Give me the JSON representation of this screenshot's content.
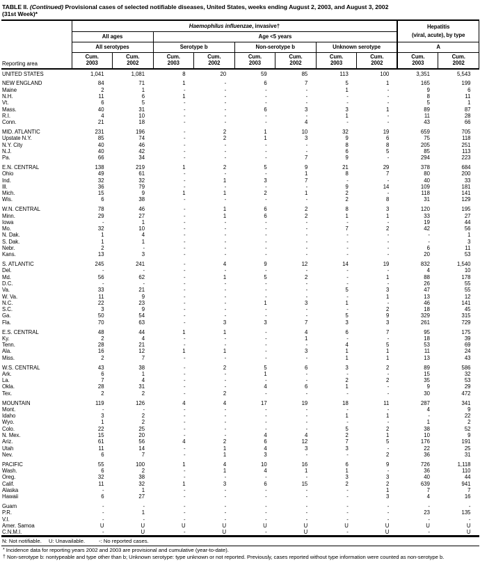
{
  "colors": {
    "ink": "#000000",
    "background": "#ffffff"
  },
  "title": {
    "part1": "TABLE II. ",
    "continued": "(Continued)",
    "part2": " Provisional cases of selected notifiable diseases, United States, weeks ending August 2, 2003, and August 3, 2002",
    "line2": "(31st Week)*"
  },
  "header": {
    "reporting_area": "Reporting area",
    "disease_italic": "Haemophilus influenzae",
    "disease_rest": ", invasive†",
    "hepatitis_line1": "Hepatitis",
    "hepatitis_line2": "(viral, acute), by type",
    "all_ages": "All ages",
    "age_under5": "Age <5 years",
    "all_serotypes": "All serotypes",
    "serotype_b": "Serotype b",
    "non_serotype_b": "Non-serotype b",
    "unknown_serotype": "Unknown serotype",
    "type_a": "A",
    "cum_label": "Cum.",
    "years": [
      "2003",
      "2002",
      "2003",
      "2002",
      "2003",
      "2002",
      "2003",
      "2002",
      "2003",
      "2002"
    ]
  },
  "rows": [
    {
      "area": "UNITED STATES",
      "section_start": false,
      "values": [
        "1,041",
        "1,081",
        "8",
        "20",
        "59",
        "85",
        "113",
        "100",
        "3,351",
        "5,543"
      ]
    },
    {
      "area": "NEW ENGLAND",
      "section_start": true,
      "values": [
        "84",
        "71",
        "1",
        "-",
        "6",
        "7",
        "5",
        "1",
        "165",
        "199"
      ]
    },
    {
      "area": "Maine",
      "section_start": false,
      "values": [
        "2",
        "1",
        "-",
        "-",
        "-",
        "-",
        "1",
        "-",
        "9",
        "6"
      ]
    },
    {
      "area": "N.H.",
      "section_start": false,
      "values": [
        "11",
        "6",
        "1",
        "-",
        "-",
        "-",
        "-",
        "-",
        "8",
        "11"
      ]
    },
    {
      "area": "Vt.",
      "section_start": false,
      "values": [
        "6",
        "5",
        "-",
        "-",
        "-",
        "-",
        "-",
        "-",
        "5",
        "1"
      ]
    },
    {
      "area": "Mass.",
      "section_start": false,
      "values": [
        "40",
        "31",
        "-",
        "-",
        "6",
        "3",
        "3",
        "1",
        "89",
        "87"
      ]
    },
    {
      "area": "R.I.",
      "section_start": false,
      "values": [
        "4",
        "10",
        "-",
        "-",
        "-",
        "-",
        "1",
        "-",
        "11",
        "28"
      ]
    },
    {
      "area": "Conn.",
      "section_start": false,
      "values": [
        "21",
        "18",
        "-",
        "-",
        "-",
        "4",
        "-",
        "-",
        "43",
        "66"
      ]
    },
    {
      "area": "MID. ATLANTIC",
      "section_start": true,
      "values": [
        "231",
        "196",
        "-",
        "2",
        "1",
        "10",
        "32",
        "19",
        "659",
        "705"
      ]
    },
    {
      "area": "Upstate N.Y.",
      "section_start": false,
      "values": [
        "85",
        "74",
        "-",
        "2",
        "1",
        "3",
        "9",
        "6",
        "75",
        "118"
      ]
    },
    {
      "area": "N.Y. City",
      "section_start": false,
      "values": [
        "40",
        "46",
        "-",
        "-",
        "-",
        "-",
        "8",
        "8",
        "205",
        "251"
      ]
    },
    {
      "area": "N.J.",
      "section_start": false,
      "values": [
        "40",
        "42",
        "-",
        "-",
        "-",
        "-",
        "6",
        "5",
        "85",
        "113"
      ]
    },
    {
      "area": "Pa.",
      "section_start": false,
      "values": [
        "66",
        "34",
        "-",
        "-",
        "-",
        "7",
        "9",
        "-",
        "294",
        "223"
      ]
    },
    {
      "area": "E.N. CENTRAL",
      "section_start": true,
      "values": [
        "138",
        "219",
        "1",
        "2",
        "5",
        "9",
        "21",
        "29",
        "378",
        "684"
      ]
    },
    {
      "area": "Ohio",
      "section_start": false,
      "values": [
        "49",
        "61",
        "-",
        "-",
        "-",
        "1",
        "8",
        "7",
        "80",
        "200"
      ]
    },
    {
      "area": "Ind.",
      "section_start": false,
      "values": [
        "32",
        "32",
        "-",
        "1",
        "3",
        "7",
        "-",
        "-",
        "40",
        "33"
      ]
    },
    {
      "area": "Ill.",
      "section_start": false,
      "values": [
        "36",
        "79",
        "-",
        "-",
        "-",
        "-",
        "9",
        "14",
        "109",
        "181"
      ]
    },
    {
      "area": "Mich.",
      "section_start": false,
      "values": [
        "15",
        "9",
        "1",
        "1",
        "2",
        "1",
        "2",
        "-",
        "118",
        "141"
      ]
    },
    {
      "area": "Wis.",
      "section_start": false,
      "values": [
        "6",
        "38",
        "-",
        "-",
        "-",
        "-",
        "2",
        "8",
        "31",
        "129"
      ]
    },
    {
      "area": "W.N. CENTRAL",
      "section_start": true,
      "values": [
        "78",
        "46",
        "-",
        "1",
        "6",
        "2",
        "8",
        "3",
        "120",
        "195"
      ]
    },
    {
      "area": "Minn.",
      "section_start": false,
      "values": [
        "29",
        "27",
        "-",
        "1",
        "6",
        "2",
        "1",
        "1",
        "33",
        "27"
      ]
    },
    {
      "area": "Iowa",
      "section_start": false,
      "values": [
        "-",
        "1",
        "-",
        "-",
        "-",
        "-",
        "-",
        "-",
        "19",
        "44"
      ]
    },
    {
      "area": "Mo.",
      "section_start": false,
      "values": [
        "32",
        "10",
        "-",
        "-",
        "-",
        "-",
        "7",
        "2",
        "42",
        "56"
      ]
    },
    {
      "area": "N. Dak.",
      "section_start": false,
      "values": [
        "1",
        "4",
        "-",
        "-",
        "-",
        "-",
        "-",
        "-",
        "-",
        "1"
      ]
    },
    {
      "area": "S. Dak.",
      "section_start": false,
      "values": [
        "1",
        "1",
        "-",
        "-",
        "-",
        "-",
        "-",
        "-",
        "-",
        "3"
      ]
    },
    {
      "area": "Nebr.",
      "section_start": false,
      "values": [
        "2",
        "-",
        "-",
        "-",
        "-",
        "-",
        "-",
        "-",
        "6",
        "11"
      ]
    },
    {
      "area": "Kans.",
      "section_start": false,
      "values": [
        "13",
        "3",
        "-",
        "-",
        "-",
        "-",
        "-",
        "-",
        "20",
        "53"
      ]
    },
    {
      "area": "S. ATLANTIC",
      "section_start": true,
      "values": [
        "245",
        "241",
        "-",
        "4",
        "9",
        "12",
        "14",
        "19",
        "832",
        "1,540"
      ]
    },
    {
      "area": "Del.",
      "section_start": false,
      "values": [
        "-",
        "-",
        "-",
        "-",
        "-",
        "-",
        "-",
        "-",
        "4",
        "10"
      ]
    },
    {
      "area": "Md.",
      "section_start": false,
      "values": [
        "56",
        "62",
        "-",
        "1",
        "5",
        "2",
        "-",
        "1",
        "88",
        "178"
      ]
    },
    {
      "area": "D.C.",
      "section_start": false,
      "values": [
        "-",
        "-",
        "-",
        "-",
        "-",
        "-",
        "-",
        "-",
        "26",
        "55"
      ]
    },
    {
      "area": "Va.",
      "section_start": false,
      "values": [
        "33",
        "21",
        "-",
        "-",
        "-",
        "-",
        "5",
        "3",
        "47",
        "55"
      ]
    },
    {
      "area": "W. Va.",
      "section_start": false,
      "values": [
        "11",
        "9",
        "-",
        "-",
        "-",
        "-",
        "-",
        "1",
        "13",
        "12"
      ]
    },
    {
      "area": "N.C.",
      "section_start": false,
      "values": [
        "22",
        "23",
        "-",
        "-",
        "1",
        "3",
        "1",
        "-",
        "46",
        "141"
      ]
    },
    {
      "area": "S.C.",
      "section_start": false,
      "values": [
        "3",
        "9",
        "-",
        "-",
        "-",
        "-",
        "-",
        "2",
        "18",
        "45"
      ]
    },
    {
      "area": "Ga.",
      "section_start": false,
      "values": [
        "50",
        "54",
        "-",
        "-",
        "-",
        "-",
        "5",
        "9",
        "329",
        "315"
      ]
    },
    {
      "area": "Fla.",
      "section_start": false,
      "values": [
        "70",
        "63",
        "-",
        "3",
        "3",
        "7",
        "3",
        "3",
        "261",
        "729"
      ]
    },
    {
      "area": "E.S. CENTRAL",
      "section_start": true,
      "values": [
        "48",
        "44",
        "1",
        "1",
        "-",
        "4",
        "6",
        "7",
        "95",
        "175"
      ]
    },
    {
      "area": "Ky.",
      "section_start": false,
      "values": [
        "2",
        "4",
        "-",
        "-",
        "-",
        "1",
        "-",
        "-",
        "18",
        "39"
      ]
    },
    {
      "area": "Tenn.",
      "section_start": false,
      "values": [
        "28",
        "21",
        "-",
        "-",
        "-",
        "-",
        "4",
        "5",
        "53",
        "69"
      ]
    },
    {
      "area": "Ala.",
      "section_start": false,
      "values": [
        "16",
        "12",
        "1",
        "1",
        "-",
        "3",
        "1",
        "1",
        "11",
        "24"
      ]
    },
    {
      "area": "Miss.",
      "section_start": false,
      "values": [
        "2",
        "7",
        "-",
        "-",
        "-",
        "-",
        "1",
        "1",
        "13",
        "43"
      ]
    },
    {
      "area": "W.S. CENTRAL",
      "section_start": true,
      "values": [
        "43",
        "38",
        "-",
        "2",
        "5",
        "6",
        "3",
        "2",
        "89",
        "586"
      ]
    },
    {
      "area": "Ark.",
      "section_start": false,
      "values": [
        "6",
        "1",
        "-",
        "-",
        "1",
        "-",
        "-",
        "-",
        "15",
        "32"
      ]
    },
    {
      "area": "La.",
      "section_start": false,
      "values": [
        "7",
        "4",
        "-",
        "-",
        "-",
        "-",
        "2",
        "2",
        "35",
        "53"
      ]
    },
    {
      "area": "Okla.",
      "section_start": false,
      "values": [
        "28",
        "31",
        "-",
        "-",
        "4",
        "6",
        "1",
        "-",
        "9",
        "29"
      ]
    },
    {
      "area": "Tex.",
      "section_start": false,
      "values": [
        "2",
        "2",
        "-",
        "2",
        "-",
        "-",
        "-",
        "-",
        "30",
        "472"
      ]
    },
    {
      "area": "MOUNTAIN",
      "section_start": true,
      "values": [
        "119",
        "126",
        "4",
        "4",
        "17",
        "19",
        "18",
        "11",
        "287",
        "341"
      ]
    },
    {
      "area": "Mont.",
      "section_start": false,
      "values": [
        "-",
        "-",
        "-",
        "-",
        "-",
        "-",
        "-",
        "-",
        "4",
        "9"
      ]
    },
    {
      "area": "Idaho",
      "section_start": false,
      "values": [
        "3",
        "2",
        "-",
        "-",
        "-",
        "-",
        "1",
        "1",
        "-",
        "22"
      ]
    },
    {
      "area": "Wyo.",
      "section_start": false,
      "values": [
        "1",
        "2",
        "-",
        "-",
        "-",
        "-",
        "-",
        "-",
        "1",
        "2"
      ]
    },
    {
      "area": "Colo.",
      "section_start": false,
      "values": [
        "22",
        "25",
        "-",
        "-",
        "-",
        "-",
        "5",
        "2",
        "38",
        "52"
      ]
    },
    {
      "area": "N. Mex.",
      "section_start": false,
      "values": [
        "15",
        "20",
        "-",
        "-",
        "4",
        "4",
        "2",
        "1",
        "10",
        "9"
      ]
    },
    {
      "area": "Ariz.",
      "section_start": false,
      "values": [
        "61",
        "56",
        "4",
        "2",
        "6",
        "12",
        "7",
        "5",
        "176",
        "191"
      ]
    },
    {
      "area": "Utah",
      "section_start": false,
      "values": [
        "11",
        "14",
        "-",
        "1",
        "4",
        "3",
        "3",
        "-",
        "22",
        "25"
      ]
    },
    {
      "area": "Nev.",
      "section_start": false,
      "values": [
        "6",
        "7",
        "-",
        "1",
        "3",
        "-",
        "-",
        "2",
        "36",
        "31"
      ]
    },
    {
      "area": "PACIFIC",
      "section_start": true,
      "values": [
        "55",
        "100",
        "1",
        "4",
        "10",
        "16",
        "6",
        "9",
        "726",
        "1,118"
      ]
    },
    {
      "area": "Wash.",
      "section_start": false,
      "values": [
        "6",
        "2",
        "-",
        "1",
        "4",
        "1",
        "1",
        "-",
        "36",
        "110"
      ]
    },
    {
      "area": "Oreg.",
      "section_start": false,
      "values": [
        "32",
        "38",
        "-",
        "-",
        "-",
        "-",
        "3",
        "3",
        "40",
        "44"
      ]
    },
    {
      "area": "Calif.",
      "section_start": false,
      "values": [
        "11",
        "32",
        "1",
        "3",
        "6",
        "15",
        "2",
        "2",
        "639",
        "941"
      ]
    },
    {
      "area": "Alaska",
      "section_start": false,
      "values": [
        "-",
        "1",
        "-",
        "-",
        "-",
        "-",
        "-",
        "1",
        "7",
        "7"
      ]
    },
    {
      "area": "Hawaii",
      "section_start": false,
      "values": [
        "6",
        "27",
        "-",
        "-",
        "-",
        "-",
        "-",
        "3",
        "4",
        "16"
      ]
    },
    {
      "area": "Guam",
      "section_start": true,
      "values": [
        "-",
        "-",
        "-",
        "-",
        "-",
        "-",
        "-",
        "-",
        "-",
        "-"
      ]
    },
    {
      "area": "P.R.",
      "section_start": false,
      "values": [
        "-",
        "1",
        "-",
        "-",
        "-",
        "-",
        "-",
        "-",
        "23",
        "135"
      ]
    },
    {
      "area": "V.I.",
      "section_start": false,
      "values": [
        "-",
        "-",
        "-",
        "-",
        "-",
        "-",
        "-",
        "-",
        "-",
        "-"
      ]
    },
    {
      "area": "Amer. Samoa",
      "section_start": false,
      "values": [
        "U",
        "U",
        "U",
        "U",
        "U",
        "U",
        "U",
        "U",
        "U",
        "U"
      ]
    },
    {
      "area": "C.N.M.I.",
      "section_start": false,
      "values": [
        "-",
        "U",
        "-",
        "U",
        "-",
        "U",
        "-",
        "U",
        "-",
        "U"
      ]
    }
  ],
  "footer": {
    "legend": [
      "N: Not notifiable.",
      "U: Unavailable.",
      "-: No reported cases."
    ],
    "notes": [
      {
        "marker": "*",
        "text": "Incidence data for reporting years 2002 and 2003 are provisional and cumulative (year-to-date)."
      },
      {
        "marker": "†",
        "text": "Non-serotype b: nontypeable and type other than b; Unknown serotype: type unknown or not reported. Previously, cases reported without type information were counted as non-serotype b."
      }
    ]
  }
}
